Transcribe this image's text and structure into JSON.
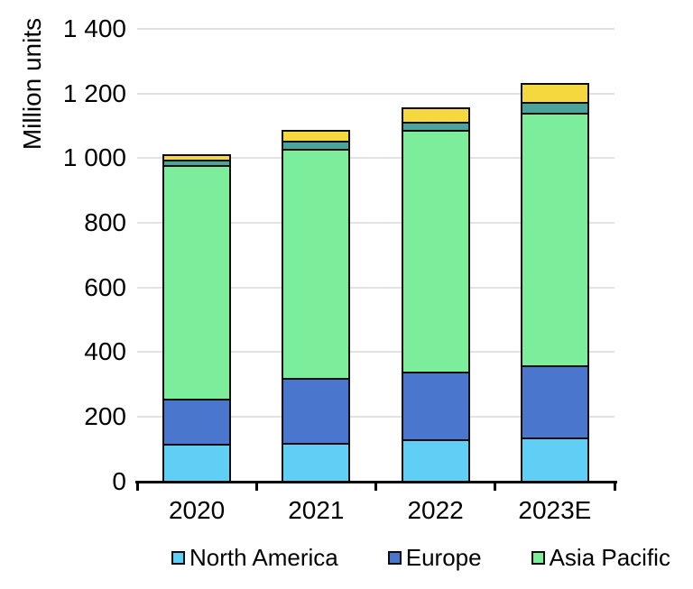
{
  "chart_data": {
    "type": "bar",
    "stacked": true,
    "ylabel": "Million units",
    "categories": [
      "2020",
      "2021",
      "2022",
      "2023E"
    ],
    "series": [
      {
        "name": "North America",
        "color": "#60CFF6",
        "in_legend": true,
        "values": [
          117,
          120,
          131,
          136
        ]
      },
      {
        "name": "Europe",
        "color": "#4A76CD",
        "in_legend": true,
        "values": [
          139,
          200,
          209,
          223
        ]
      },
      {
        "name": "Asia Pacific",
        "color": "#7CEE9B",
        "in_legend": true,
        "values": [
          723,
          709,
          747,
          782
        ]
      },
      {
        "name": "unlabeled-teal",
        "color": "#4AA49B",
        "in_legend": false,
        "values": [
          17,
          25,
          26,
          33
        ]
      },
      {
        "name": "unlabeled-yellow",
        "color": "#F4D83D",
        "in_legend": false,
        "values": [
          15,
          34,
          45,
          58
        ]
      }
    ],
    "totals": [
      1011,
      1088,
      1158,
      1232
    ],
    "ylim": [
      0,
      1400
    ],
    "ytick_step": 200,
    "ytick_labels": [
      "0",
      "200",
      "400",
      "600",
      "800",
      "1 000",
      "1 200",
      "1 400"
    ],
    "grid": true,
    "legend_position": "bottom",
    "colors": {
      "grid": "#e2e2e2",
      "axis": "#000000",
      "bar_border": "#0d0d0d",
      "text": "#000000",
      "background": "#ffffff"
    }
  }
}
